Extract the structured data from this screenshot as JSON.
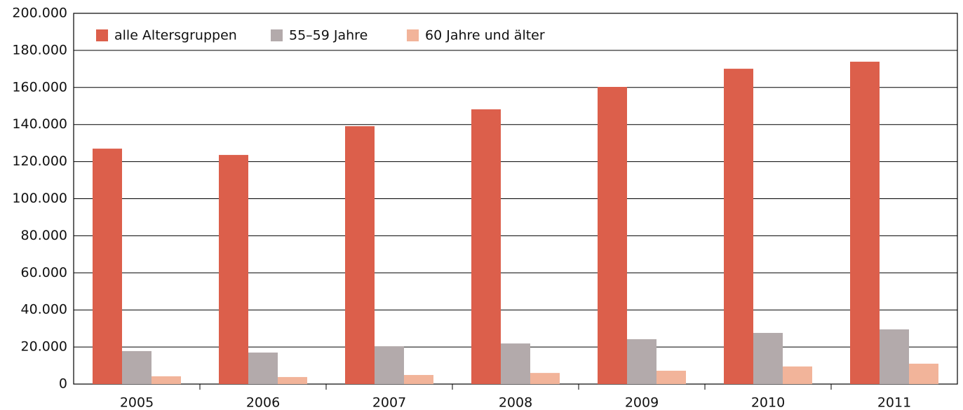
{
  "chart_data": {
    "type": "bar",
    "categories": [
      "2005",
      "2006",
      "2007",
      "2008",
      "2009",
      "2010",
      "2011"
    ],
    "series": [
      {
        "name": "alle Altersgruppen",
        "color": "#dc5f4b",
        "values": [
          127000,
          123600,
          139100,
          148200,
          160300,
          170100,
          173900
        ]
      },
      {
        "name": "55–59 Jahre",
        "color": "#b3aaab",
        "values": [
          17800,
          17000,
          20400,
          21900,
          24200,
          27600,
          29500
        ]
      },
      {
        "name": "60 Jahre und älter",
        "color": "#f2b49a",
        "values": [
          4200,
          3800,
          4900,
          6000,
          7200,
          9500,
          11000
        ]
      }
    ],
    "ylim": [
      0,
      200000
    ],
    "yticks": [
      0,
      {
        "value": 20000,
        "label": "20.000"
      },
      {
        "value": 40000,
        "label": "40.000"
      },
      {
        "value": 60000,
        "label": "60.000"
      },
      {
        "value": 80000,
        "label": "80.000"
      },
      {
        "value": 100000,
        "label": "100.000"
      },
      {
        "value": 120000,
        "label": "120.000"
      },
      {
        "value": 140000,
        "label": "140.000"
      },
      {
        "value": 160000,
        "label": "160.000"
      },
      {
        "value": 180000,
        "label": "180.000"
      },
      {
        "value": 200000,
        "label": "200.000"
      }
    ],
    "grid": true,
    "legend": "top-left"
  }
}
